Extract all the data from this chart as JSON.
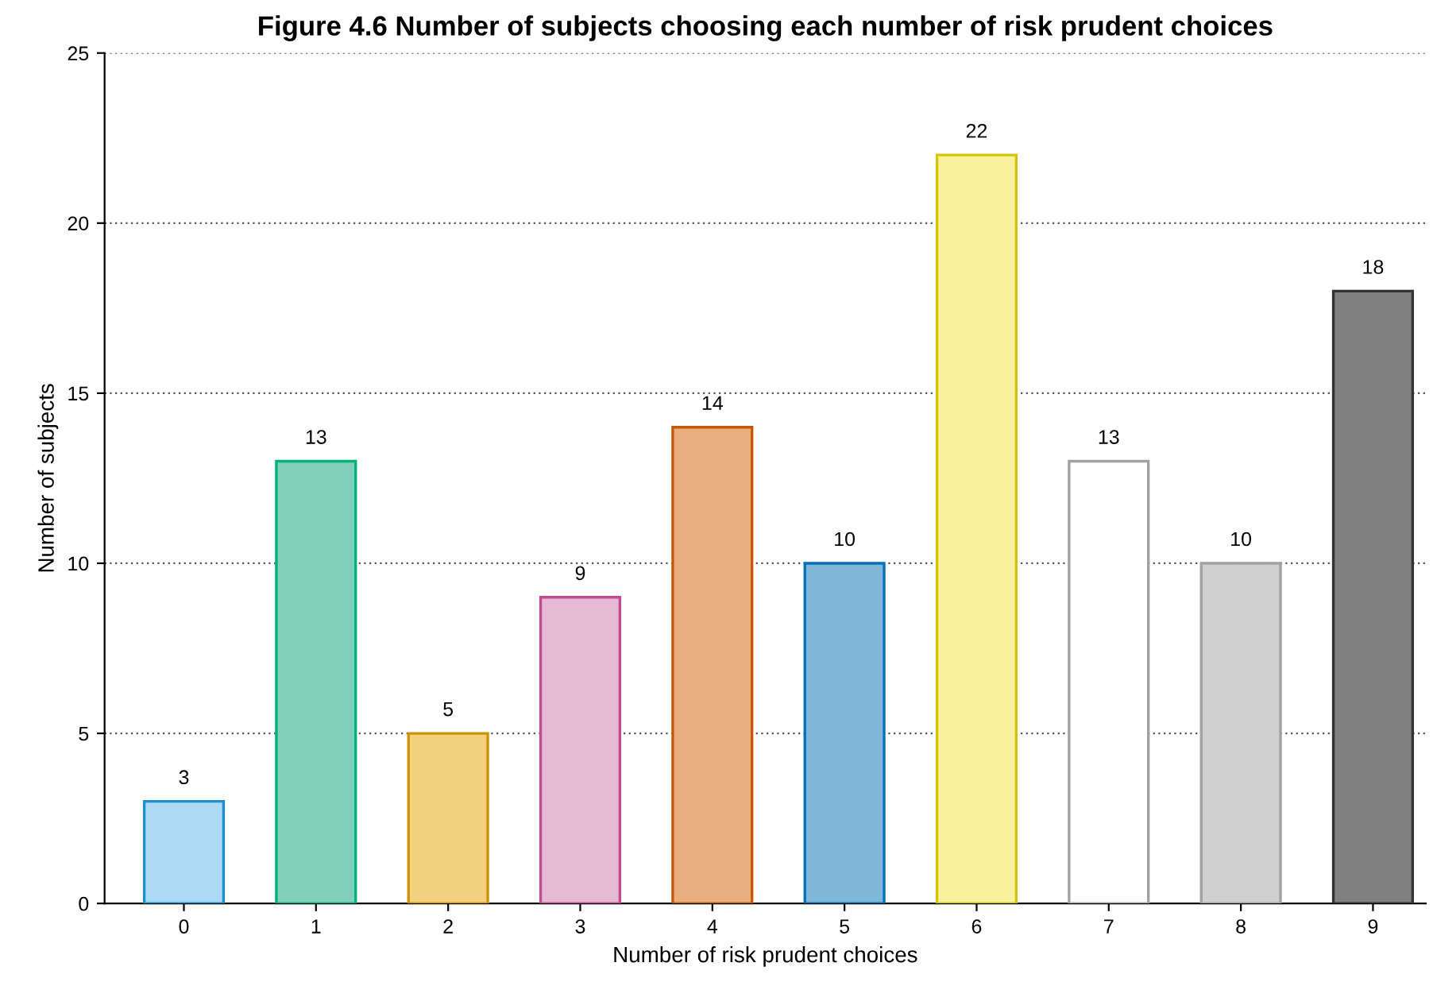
{
  "chart_data": {
    "type": "bar",
    "title": "Figure 4.6 Number of subjects choosing each number of risk prudent choices",
    "xlabel": "Number of risk prudent choices",
    "ylabel": "Number of subjects",
    "categories": [
      "0",
      "1",
      "2",
      "3",
      "4",
      "5",
      "6",
      "7",
      "8",
      "9"
    ],
    "values": [
      3,
      13,
      5,
      9,
      14,
      10,
      22,
      13,
      10,
      18
    ],
    "colors": [
      "#acdaf4",
      "#82d0b9",
      "#f2d17f",
      "#e6bad5",
      "#e8ae80",
      "#80b7da",
      "#f8f29e",
      "#ffffff",
      "#d0d0d0",
      "#808080"
    ],
    "ylim": [
      0,
      25
    ],
    "yticks": [
      0,
      5,
      10,
      15,
      20,
      25
    ],
    "grid": "y",
    "data_labels": true,
    "legend": false
  }
}
